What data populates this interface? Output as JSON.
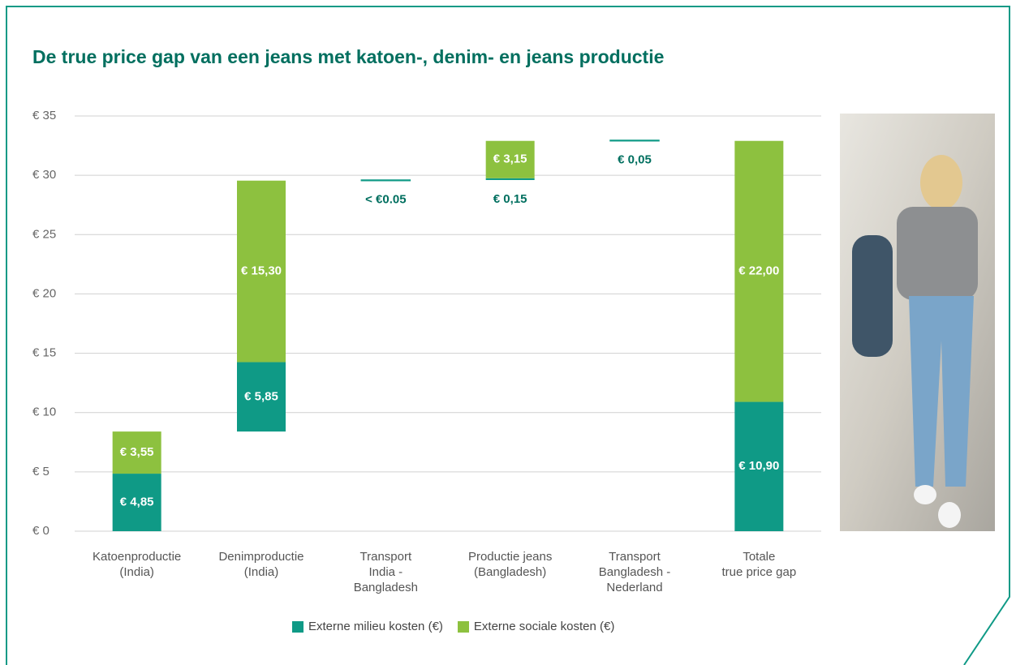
{
  "chart_data": {
    "type": "waterfall",
    "title": "De true price gap van een jeans met katoen-, denim- en jeans productie",
    "categories": [
      "Katoenproductie\n(India)",
      "Denimproductie\n(India)",
      "Transport\nIndia -\nBangladesh",
      "Productie jeans\n(Bangladesh)",
      "Transport\nBangladesh -\nNederland",
      "Totale\ntrue price gap"
    ],
    "series": [
      {
        "name": "Externe milieu kosten (€)",
        "color": "#0f9a86",
        "values": [
          4.85,
          5.85,
          0.05,
          0.15,
          0.05,
          10.9
        ],
        "value_labels": [
          "€ 4,85",
          "€ 5,85",
          "< €0.05",
          "€ 0,15",
          "€ 0,05",
          "€ 10,90"
        ]
      },
      {
        "name": "Externe sociale kosten (€)",
        "color": "#8dc13f",
        "values": [
          3.55,
          15.3,
          null,
          3.15,
          null,
          22.0
        ],
        "value_labels": [
          "€ 3,55",
          "€ 15,30",
          null,
          "€ 3,15",
          null,
          "€ 22,00"
        ]
      }
    ],
    "ylim": [
      0,
      35
    ],
    "yticks": [
      {
        "value": 0,
        "label": "€ 0"
      },
      {
        "value": 5,
        "label": "€ 5"
      },
      {
        "value": 10,
        "label": "€ 10"
      },
      {
        "value": 15,
        "label": "€ 15"
      },
      {
        "value": 20,
        "label": "€ 20"
      },
      {
        "value": 25,
        "label": "€ 25"
      },
      {
        "value": 30,
        "label": "€ 30"
      },
      {
        "value": 35,
        "label": "€ 35"
      }
    ],
    "grid": true,
    "legend": "bottom"
  }
}
